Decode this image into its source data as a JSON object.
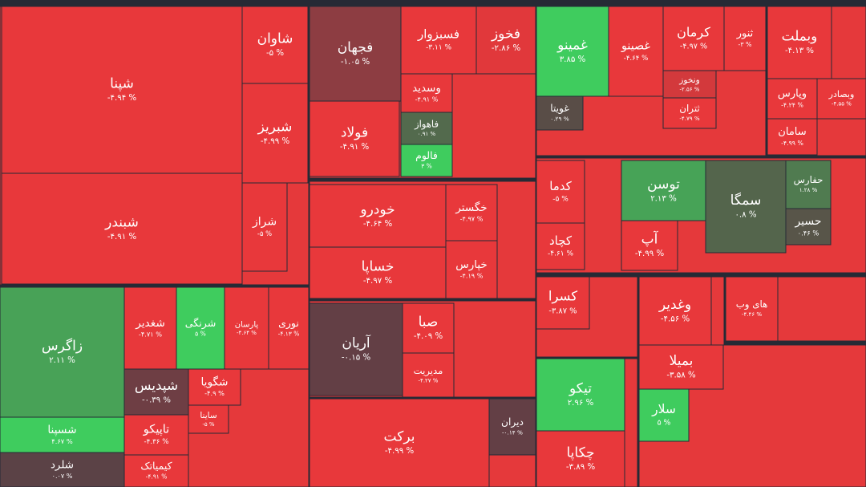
{
  "chart_data": {
    "type": "treemap",
    "categories": [
      "شپنا",
      "شبندر",
      "شاوان",
      "شبریز",
      "شراز",
      "فجهان",
      "فولاد",
      "فسبزوار",
      "فخوز",
      "وسدید",
      "فاهواز",
      "فالوم",
      "خودرو",
      "خساپا",
      "خگستر",
      "خپارس",
      "آریان",
      "صبا",
      "مدیریت",
      "برکت",
      "دیران",
      "غمینو",
      "غصینو",
      "غویتا",
      "کرمان",
      "ثنور",
      "ونخوز",
      "ثتران",
      "وبملت",
      "وپارس",
      "وبصادر",
      "سامان",
      "کدما",
      "کچاد",
      "توسن",
      "آپ",
      "سمگا",
      "حفارس",
      "حسیر",
      "کسرا",
      "تیکو",
      "چکاپا",
      "وغدیر",
      "های وب",
      "بمیلا",
      "سلار",
      "زاگرس",
      "شسپنا",
      "شلرد",
      "شغدیر",
      "شرنگی",
      "پارسان",
      "نوری",
      "شپدیس",
      "شگویا",
      "تاپیکو",
      "کیمیاتک",
      "ساینا"
    ],
    "values": [
      -4.94,
      -4.91,
      -5,
      -4.99,
      -5,
      -1.05,
      -4.91,
      -3.11,
      -2.86,
      -4.91,
      0.91,
      3,
      -4.64,
      -4.97,
      -4.97,
      -4.19,
      -0.15,
      -4.09,
      -4.27,
      -4.99,
      -0.14,
      3.85,
      -4.64,
      0.29,
      -4.97,
      -3,
      -2.56,
      -4.79,
      -4.13,
      -4.24,
      -4.55,
      -4.99,
      -5,
      -4.61,
      2.13,
      -4.99,
      0.8,
      1.28,
      0.46,
      -3.87,
      2.96,
      -3.89,
      -4.56,
      -4.46,
      -3.58,
      5,
      2.11,
      4.67,
      0.07,
      -4.71,
      5,
      -4.64,
      -4.13,
      -0.39,
      -4.9,
      -4.36,
      -4.91,
      -5
    ],
    "value_labels": [
      "-۴.۹۴ %",
      "-۴.۹۱ %",
      "-۵ %",
      "-۴.۹۹ %",
      "-۵ %",
      "-۱.۰۵ %",
      "-۴.۹۱ %",
      "-۳.۱۱ %",
      "-۲.۸۶ %",
      "-۴.۹۱ %",
      "۰.۹۱ %",
      "۳ %",
      "-۴.۶۴ %",
      "-۴.۹۷ %",
      "-۴.۹۷ %",
      "-۴.۱۹ %",
      "-۰.۱۵ %",
      "-۴.۰۹ %",
      "-۴.۲۷ %",
      "-۴.۹۹ %",
      "-۰.۱۴ %",
      "۳.۸۵ %",
      "-۴.۶۴ %",
      "۰.۲۹ %",
      "-۴.۹۷ %",
      "-۳ %",
      "-۲.۵۶ %",
      "-۴.۷۹ %",
      "-۴.۱۳ %",
      "-۴.۲۴ %",
      "-۴.۵۵ %",
      "-۴.۹۹ %",
      "-۵ %",
      "-۴.۶۱ %",
      "۲.۱۳ %",
      "-۴.۹۹ %",
      "۰.۸ %",
      "۱.۲۸ %",
      "۰.۴۶ %",
      "-۳.۸۷ %",
      "۲.۹۶ %",
      "-۳.۸۹ %",
      "-۴.۵۶ %",
      "-۴.۴۶ %",
      "-۳.۵۸ %",
      "۵ %",
      "۲.۱۱ %",
      "۴.۶۷ %",
      "۰.۰۷ %",
      "-۴.۷۱ %",
      "۵ %",
      "-۴.۶۴ %",
      "-۴.۱۳ %",
      "-۰.۳۹ %",
      "-۴.۹ %",
      "-۴.۳۶ %",
      "-۴.۹۱ %",
      "-۵ %"
    ],
    "color_scale": [
      [
        -3,
        "#e8383b"
      ],
      [
        0,
        "#5c3f45"
      ],
      [
        3,
        "#3fcc5e"
      ]
    ]
  }
}
